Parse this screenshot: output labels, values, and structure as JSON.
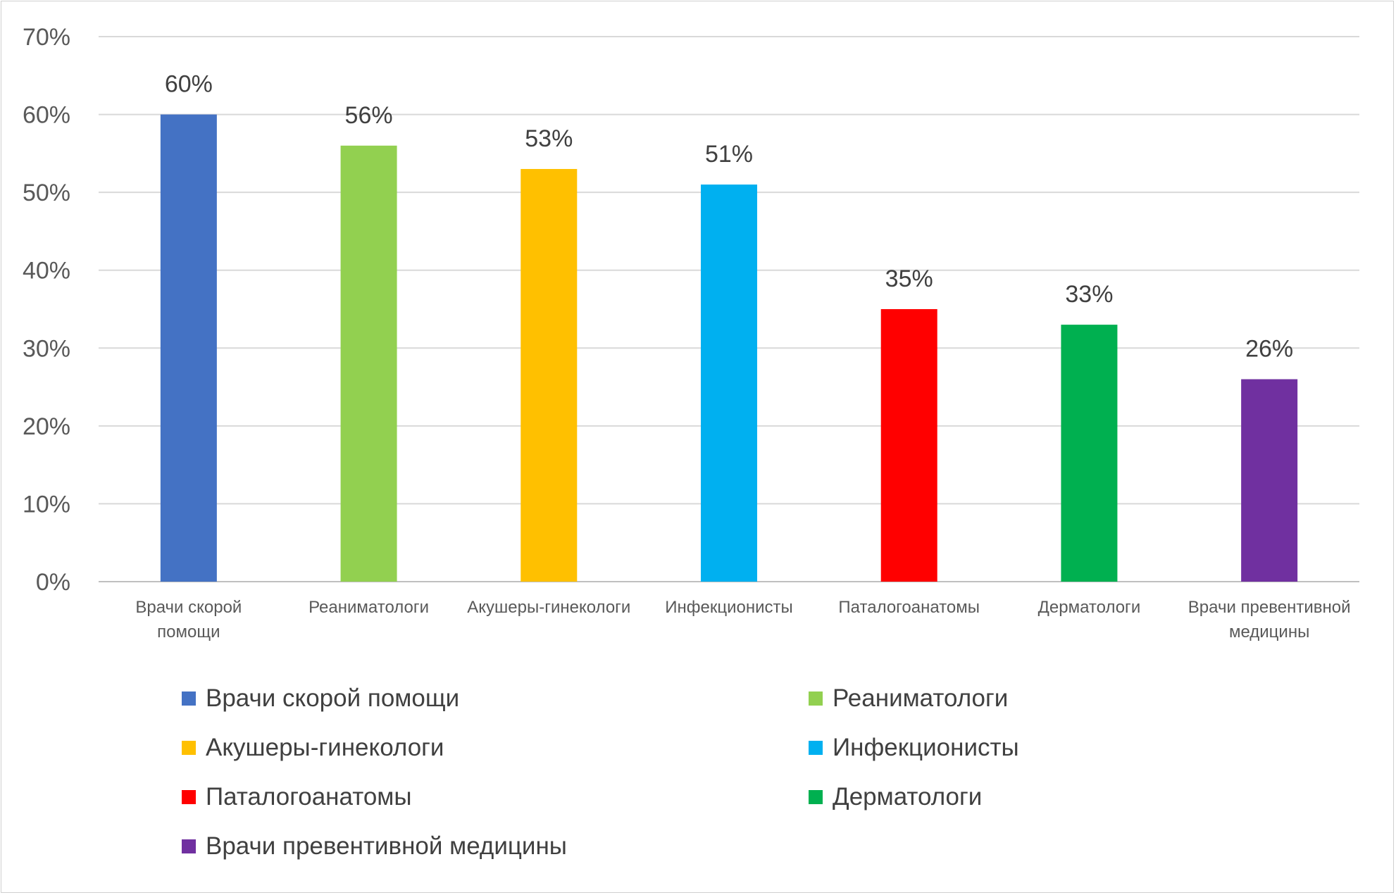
{
  "chart_data": {
    "type": "bar",
    "title": "",
    "xlabel": "",
    "ylabel": "",
    "ylim": [
      0,
      70
    ],
    "yticks": [
      "0%",
      "10%",
      "20%",
      "30%",
      "40%",
      "50%",
      "60%",
      "70%"
    ],
    "grid": true,
    "legend_position": "bottom",
    "categories": [
      [
        "Врачи скорой",
        "помощи"
      ],
      [
        "Реаниматологи"
      ],
      [
        "Акушеры-гинекологи"
      ],
      [
        "Инфекционисты"
      ],
      [
        "Паталогоанатомы"
      ],
      [
        "Дерматологи"
      ],
      [
        "Врачи превентивной",
        "медицины"
      ]
    ],
    "values": [
      60,
      56,
      53,
      51,
      35,
      33,
      26
    ],
    "data_labels": [
      "60%",
      "56%",
      "53%",
      "51%",
      "35%",
      "33%",
      "26%"
    ],
    "colors": [
      "#4472C4",
      "#92D050",
      "#FFC000",
      "#00B0F0",
      "#FF0000",
      "#00B050",
      "#7030A0"
    ],
    "legend": [
      "Врачи скорой помощи",
      "Реаниматологи",
      "Акушеры-гинекологи",
      "Инфекционисты",
      "Паталогоанатомы",
      "Дерматологи",
      "Врачи превентивной медицины"
    ]
  }
}
